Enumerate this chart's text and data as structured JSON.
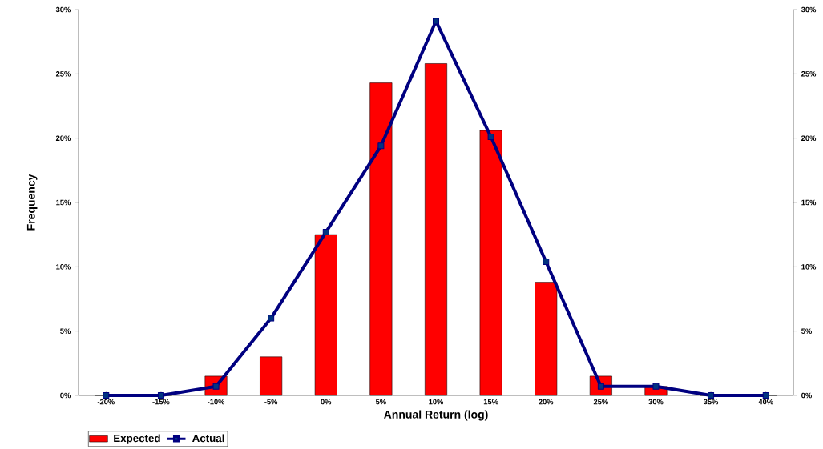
{
  "chart_data": {
    "type": "bar",
    "xlabel": "Annual Return (log)",
    "ylabel": "Frequency",
    "categories": [
      "-20%",
      "-15%",
      "-10%",
      "-5%",
      "0%",
      "5%",
      "10%",
      "15%",
      "20%",
      "25%",
      "30%",
      "35%",
      "40%"
    ],
    "series": [
      {
        "name": "Expected",
        "color": "#ff0000",
        "values": [
          0,
          0,
          1.5,
          3.0,
          12.5,
          24.3,
          25.8,
          20.6,
          8.8,
          1.5,
          0.7,
          0,
          0
        ]
      },
      {
        "name": "Actual",
        "type": "line",
        "color": "#000080",
        "values": [
          0,
          0,
          0.7,
          6.0,
          12.7,
          19.4,
          29.1,
          20.1,
          10.4,
          0.7,
          0.7,
          0,
          0
        ]
      }
    ],
    "ylim": [
      0,
      30
    ],
    "yticks": [
      {
        "value": 0,
        "label": "0%"
      },
      {
        "value": 5,
        "label": "5%"
      },
      {
        "value": 10,
        "label": "10%"
      },
      {
        "value": 15,
        "label": "15%"
      },
      {
        "value": 20,
        "label": "20%"
      },
      {
        "value": 25,
        "label": "25%"
      },
      {
        "value": 30,
        "label": "30%"
      }
    ],
    "y2lim": [
      0,
      30
    ],
    "y2ticks": [
      {
        "value": 0,
        "label": "0%"
      },
      {
        "value": 5,
        "label": "5%"
      },
      {
        "value": 10,
        "label": "10%"
      },
      {
        "value": 15,
        "label": "15%"
      },
      {
        "value": 20,
        "label": "20%"
      },
      {
        "value": 25,
        "label": "25%"
      },
      {
        "value": 30,
        "label": "30%"
      }
    ],
    "legend": "bottom left",
    "marker": "square",
    "line_style": "solid"
  }
}
